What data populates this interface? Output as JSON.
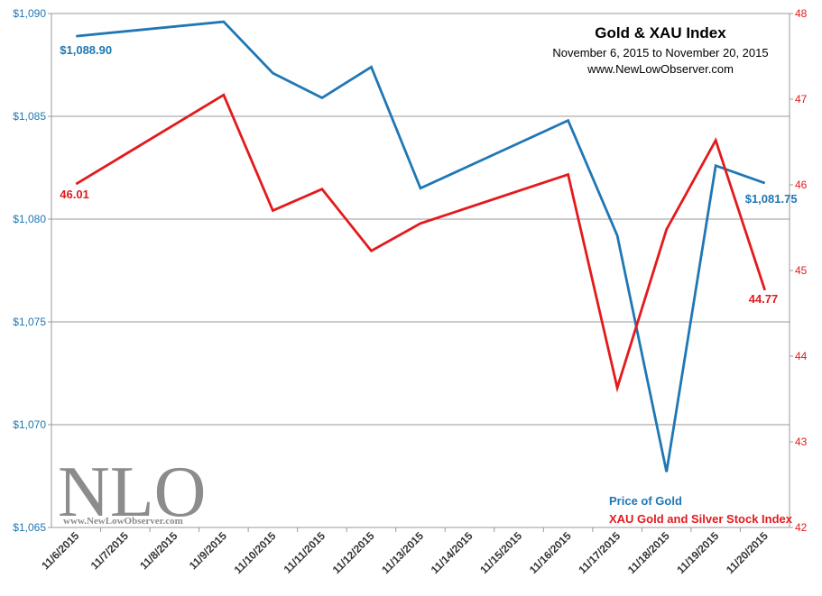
{
  "chart_data": {
    "type": "line",
    "title": "Gold & XAU Index",
    "subtitle": "November 6, 2015  to November 20, 2015",
    "source": "www.NewLowObserver.com",
    "categories": [
      "11/6/2015",
      "11/7/2015",
      "11/8/2015",
      "11/9/2015",
      "11/10/2015",
      "11/11/2015",
      "11/12/2015",
      "11/13/2015",
      "11/14/2015",
      "11/15/2015",
      "11/16/2015",
      "11/17/2015",
      "11/18/2015",
      "11/19/2015",
      "11/20/2015"
    ],
    "left_axis": {
      "ylim": [
        1065,
        1090
      ],
      "ticks": [
        "$1,065",
        "$1,070",
        "$1,075",
        "$1,080",
        "$1,085",
        "$1,090"
      ],
      "tick_values": [
        1065,
        1070,
        1075,
        1080,
        1085,
        1090
      ]
    },
    "right_axis": {
      "ylim": [
        42,
        48
      ],
      "ticks": [
        "42",
        "43",
        "44",
        "45",
        "46",
        "47",
        "48"
      ],
      "tick_values": [
        42,
        43,
        44,
        45,
        46,
        47,
        48
      ]
    },
    "grid": true,
    "legend_position": "bottom-right",
    "series": [
      {
        "name": "Price of Gold",
        "axis": "left",
        "color": "#1f77b4",
        "x": [
          "11/6/2015",
          "11/9/2015",
          "11/10/2015",
          "11/11/2015",
          "11/12/2015",
          "11/13/2015",
          "11/16/2015",
          "11/17/2015",
          "11/18/2015",
          "11/19/2015",
          "11/20/2015"
        ],
        "values": [
          1088.9,
          1089.6,
          1087.1,
          1085.9,
          1087.4,
          1081.5,
          1084.8,
          1079.2,
          1067.7,
          1082.6,
          1081.75
        ]
      },
      {
        "name": "XAU Gold and Silver Stock Index",
        "axis": "right",
        "color": "#e31a1c",
        "x": [
          "11/6/2015",
          "11/9/2015",
          "11/10/2015",
          "11/11/2015",
          "11/12/2015",
          "11/13/2015",
          "11/16/2015",
          "11/17/2015",
          "11/18/2015",
          "11/19/2015",
          "11/20/2015"
        ],
        "values": [
          46.01,
          47.05,
          45.7,
          45.95,
          45.23,
          45.55,
          46.12,
          43.63,
          45.48,
          46.52,
          44.77
        ]
      }
    ],
    "annotations": [
      {
        "text": "$1,088.90",
        "series": 0,
        "point": 0
      },
      {
        "text": "$1,081.75",
        "series": 0,
        "point": 10
      },
      {
        "text": "46.01",
        "series": 1,
        "point": 0
      },
      {
        "text": "44.77",
        "series": 1,
        "point": 10
      }
    ]
  },
  "watermark": {
    "logo": "NLO",
    "url": "www.NewLowObserver.com"
  }
}
